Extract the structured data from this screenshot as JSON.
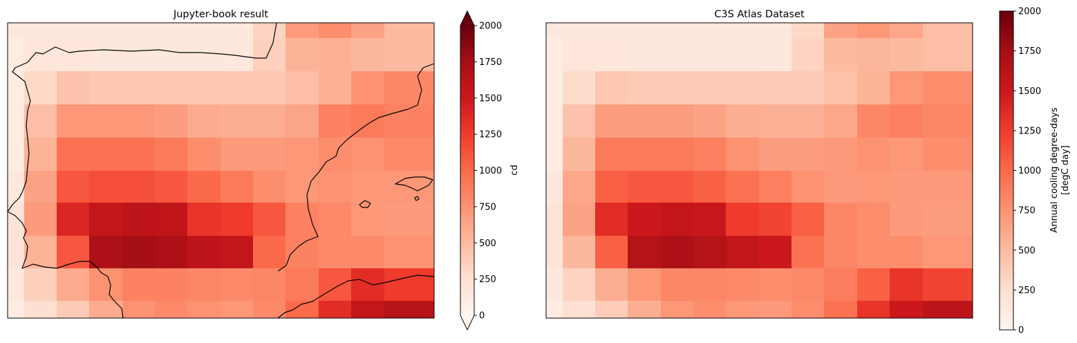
{
  "chart_data": [
    {
      "type": "heatmap",
      "title": "Jupyter-book result",
      "grid": false,
      "rows": [
        [
          150,
          150,
          150,
          150,
          150,
          150,
          150,
          150,
          330,
          700,
          780,
          650,
          500
        ],
        [
          100,
          180,
          180,
          160,
          160,
          160,
          160,
          170,
          350,
          540,
          560,
          520,
          500
        ],
        [
          100,
          300,
          450,
          420,
          420,
          420,
          420,
          420,
          420,
          480,
          560,
          750,
          820
        ],
        [
          100,
          480,
          720,
          720,
          720,
          680,
          600,
          580,
          580,
          640,
          850,
          900,
          850
        ],
        [
          100,
          550,
          950,
          950,
          950,
          900,
          780,
          700,
          700,
          720,
          780,
          750,
          800
        ],
        [
          150,
          650,
          1100,
          1150,
          1150,
          1100,
          1000,
          900,
          780,
          720,
          750,
          720,
          720
        ],
        [
          200,
          700,
          1400,
          1550,
          1600,
          1580,
          1300,
          1250,
          1100,
          850,
          800,
          720,
          700
        ],
        [
          200,
          550,
          1100,
          1700,
          1750,
          1700,
          1600,
          1550,
          1000,
          850,
          800,
          800,
          750
        ],
        [
          150,
          350,
          600,
          750,
          850,
          850,
          820,
          800,
          820,
          900,
          1100,
          1350,
          1250
        ],
        [
          100,
          250,
          400,
          600,
          750,
          800,
          750,
          720,
          800,
          1000,
          1350,
          1550,
          1650
        ]
      ],
      "colorbar": {
        "label": "cd",
        "min": 0,
        "max": 2000,
        "ticks": [
          "0",
          "250",
          "500",
          "750",
          "1000",
          "1250",
          "1500",
          "1750",
          "2000"
        ],
        "extend": "both"
      }
    },
    {
      "type": "heatmap",
      "title": "C3S Atlas Dataset",
      "grid": false,
      "rows": [
        [
          150,
          150,
          150,
          150,
          150,
          150,
          150,
          150,
          300,
          650,
          720,
          620,
          480
        ],
        [
          100,
          180,
          180,
          160,
          160,
          160,
          160,
          170,
          330,
          500,
          530,
          500,
          480
        ],
        [
          100,
          280,
          420,
          400,
          400,
          400,
          400,
          400,
          400,
          460,
          540,
          720,
          780
        ],
        [
          100,
          450,
          680,
          680,
          680,
          650,
          580,
          560,
          560,
          620,
          820,
          860,
          820
        ],
        [
          100,
          520,
          900,
          900,
          900,
          860,
          750,
          680,
          680,
          700,
          750,
          720,
          780
        ],
        [
          150,
          620,
          1050,
          1100,
          1100,
          1050,
          950,
          860,
          750,
          700,
          720,
          700,
          700
        ],
        [
          200,
          650,
          1350,
          1500,
          1550,
          1520,
          1250,
          1200,
          1050,
          820,
          780,
          700,
          680
        ],
        [
          200,
          520,
          1050,
          1650,
          1700,
          1650,
          1550,
          1500,
          950,
          820,
          780,
          780,
          720
        ],
        [
          150,
          330,
          580,
          720,
          820,
          820,
          800,
          780,
          800,
          880,
          1050,
          1300,
          1200
        ],
        [
          100,
          240,
          380,
          580,
          720,
          780,
          720,
          700,
          780,
          950,
          1300,
          1500,
          1600
        ]
      ],
      "colorbar": {
        "label_lines": [
          "Annual cooling degree-days",
          "[degC day]"
        ],
        "min": 0,
        "max": 2000,
        "ticks": [
          "0",
          "250",
          "500",
          "750",
          "1000",
          "1250",
          "1500",
          "1750",
          "2000"
        ],
        "extend": "neither"
      }
    }
  ],
  "colormap": {
    "name": "Reds",
    "stops": [
      "#fff5f0",
      "#fee0d2",
      "#fcbba1",
      "#fc9272",
      "#fb6a4a",
      "#ef3b2c",
      "#cb181d",
      "#a50f15",
      "#67000d"
    ]
  }
}
